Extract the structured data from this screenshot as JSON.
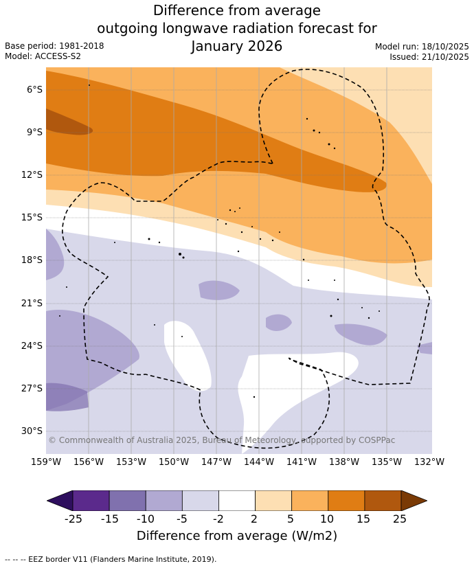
{
  "title": {
    "line1": "Difference from average",
    "line2": "outgoing longwave radiation forecast for",
    "line3": "January 2026"
  },
  "meta_left": {
    "base_period": "Base period: 1981-2018",
    "model": "Model: ACCESS-S2"
  },
  "meta_right": {
    "model_run": "Model run: 18/10/2025",
    "issued": "Issued: 21/10/2025"
  },
  "lat_ticks": [
    "6°S",
    "9°S",
    "12°S",
    "15°S",
    "18°S",
    "21°S",
    "24°S",
    "27°S",
    "30°S"
  ],
  "lon_ticks": [
    "159°W",
    "156°W",
    "153°W",
    "150°W",
    "147°W",
    "144°W",
    "141°W",
    "138°W",
    "135°W",
    "132°W"
  ],
  "credit": "© Commonwealth of Australia 2025, Bureau of Meteorology, supported by COSPPac",
  "colorbar": {
    "labels": [
      "-25",
      "-15",
      "-10",
      "-5",
      "-2",
      "2",
      "5",
      "10",
      "15",
      "25"
    ],
    "colors": [
      "#2e0f5e",
      "#5b2a8c",
      "#8071ae",
      "#b1a9d2",
      "#d8d8ea",
      "#ffffff",
      "#fddfb3",
      "#fab25c",
      "#e07d14",
      "#b0580e",
      "#7a3a05"
    ],
    "title": "Difference from average (W/m2)"
  },
  "footnote": "--  --  -- EEZ border V11 (Flanders Marine Institute, 2019)."
}
